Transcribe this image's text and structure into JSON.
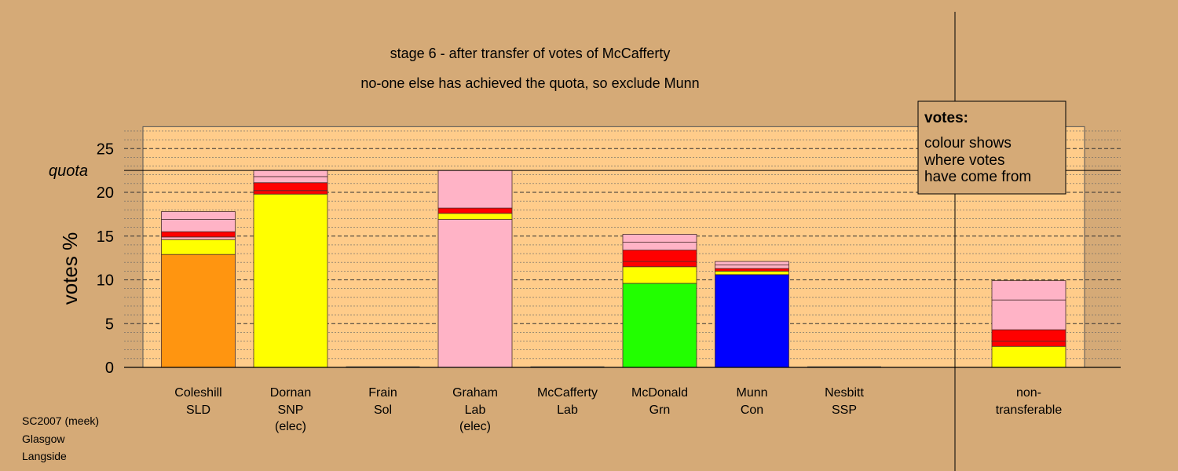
{
  "chart_data": {
    "type": "bar",
    "stacked": true,
    "title": "stage 6 - after transfer of votes of McCafferty",
    "subtitle": "no-one else has achieved the quota, so exclude Munn",
    "ylabel": "votes %",
    "ylim": [
      0,
      27.5
    ],
    "yticks": [
      0,
      5,
      10,
      15,
      20,
      25
    ],
    "quota": 22.5,
    "quota_label": "quota",
    "grid": true,
    "legend": {
      "title": "votes:",
      "lines": [
        "colour shows",
        "where votes",
        "have come from"
      ],
      "position": "top-right"
    },
    "candidates": [
      {
        "name": "Coleshill",
        "party": "SLD",
        "note": "",
        "segments": [
          {
            "value": 12.9,
            "color": "#ff9510"
          },
          {
            "value": 1.7,
            "color": "#ffff00"
          },
          {
            "value": 0.3,
            "color": "#ffb3c6"
          },
          {
            "value": 0.6,
            "color": "#ff0000"
          },
          {
            "value": 1.4,
            "color": "#ffb3c6"
          },
          {
            "value": 0.9,
            "color": "#ffb3c6"
          }
        ]
      },
      {
        "name": "Dornan",
        "party": "SNP",
        "note": "(elec)",
        "segments": [
          {
            "value": 19.8,
            "color": "#ffff00"
          },
          {
            "value": 0.4,
            "color": "#ff0000"
          },
          {
            "value": 0.9,
            "color": "#ff0000"
          },
          {
            "value": 0.7,
            "color": "#ffb3c6"
          },
          {
            "value": 0.7,
            "color": "#ffb3c6"
          }
        ]
      },
      {
        "name": "Frain",
        "party": "Sol",
        "note": "",
        "segments": []
      },
      {
        "name": "Graham",
        "party": "Lab",
        "note": "(elec)",
        "segments": [
          {
            "value": 16.9,
            "color": "#ffb3c6"
          },
          {
            "value": 0.7,
            "color": "#ffff00"
          },
          {
            "value": 0.6,
            "color": "#ff0000"
          },
          {
            "value": 4.3,
            "color": "#ffb3c6"
          }
        ]
      },
      {
        "name": "McCafferty",
        "party": "Lab",
        "note": "",
        "segments": []
      },
      {
        "name": "McDonald",
        "party": "Grn",
        "note": "",
        "segments": [
          {
            "value": 9.6,
            "color": "#22ff00"
          },
          {
            "value": 1.9,
            "color": "#ffff00"
          },
          {
            "value": 0.6,
            "color": "#ff0000"
          },
          {
            "value": 1.3,
            "color": "#ff0000"
          },
          {
            "value": 0.9,
            "color": "#ffb3c6"
          },
          {
            "value": 0.9,
            "color": "#ffb3c6"
          }
        ]
      },
      {
        "name": "Munn",
        "party": "Con",
        "note": "",
        "segments": [
          {
            "value": 10.6,
            "color": "#0000ff"
          },
          {
            "value": 0.4,
            "color": "#ffff00"
          },
          {
            "value": 0.3,
            "color": "#ff0000"
          },
          {
            "value": 0.4,
            "color": "#ffb3c6"
          },
          {
            "value": 0.4,
            "color": "#ffb3c6"
          }
        ]
      },
      {
        "name": "Nesbitt",
        "party": "SSP",
        "note": "",
        "segments": []
      }
    ],
    "nontransferable": {
      "label_line1": "non-",
      "label_line2": "transferable",
      "segments": [
        {
          "value": 2.4,
          "color": "#ffff00"
        },
        {
          "value": 0.6,
          "color": "#ff0000"
        },
        {
          "value": 1.3,
          "color": "#ff0000"
        },
        {
          "value": 3.4,
          "color": "#ffb3c6"
        },
        {
          "value": 2.2,
          "color": "#ffb3c6"
        }
      ]
    }
  },
  "footer": {
    "line1": "SC2007 (meek)",
    "line2": "Glasgow",
    "line3": "Langside"
  },
  "colors": {
    "background": "#d5aa77",
    "plot_background": "#ffcc8a"
  }
}
